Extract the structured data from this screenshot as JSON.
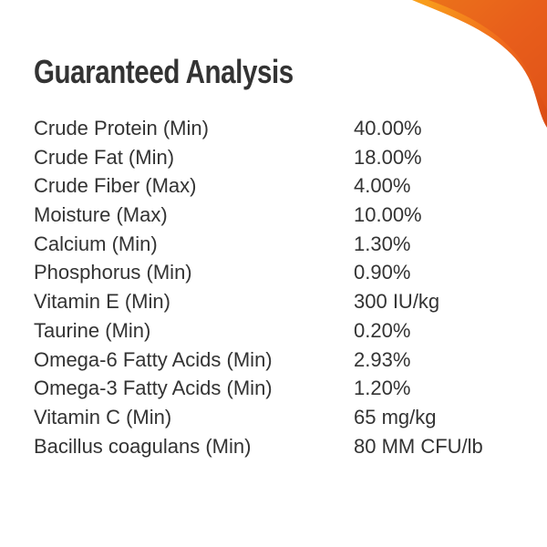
{
  "header": {
    "title": "Guaranteed Analysis"
  },
  "table": {
    "rows": [
      [
        "Crude Protein (Min)",
        "40.00%"
      ],
      [
        "Crude Fat (Min)",
        "18.00%"
      ],
      [
        "Crude Fiber (Max)",
        "4.00%"
      ],
      [
        "Moisture (Max)",
        "10.00%"
      ],
      [
        "Calcium (Min)",
        "1.30%"
      ],
      [
        "Phosphorus (Min)",
        "0.90%"
      ],
      [
        "Vitamin E (Min)",
        "300 IU/kg"
      ],
      [
        "Taurine (Min)",
        "0.20%"
      ],
      [
        "Omega-6 Fatty Acids (Min)",
        "2.93%"
      ],
      [
        "Omega-3 Fatty Acids (Min)",
        "1.20%"
      ],
      [
        "Vitamin C (Min)",
        "65 mg/kg"
      ],
      [
        "Bacillus coagulans (Min)",
        "80 MM CFU/lb"
      ]
    ]
  }
}
